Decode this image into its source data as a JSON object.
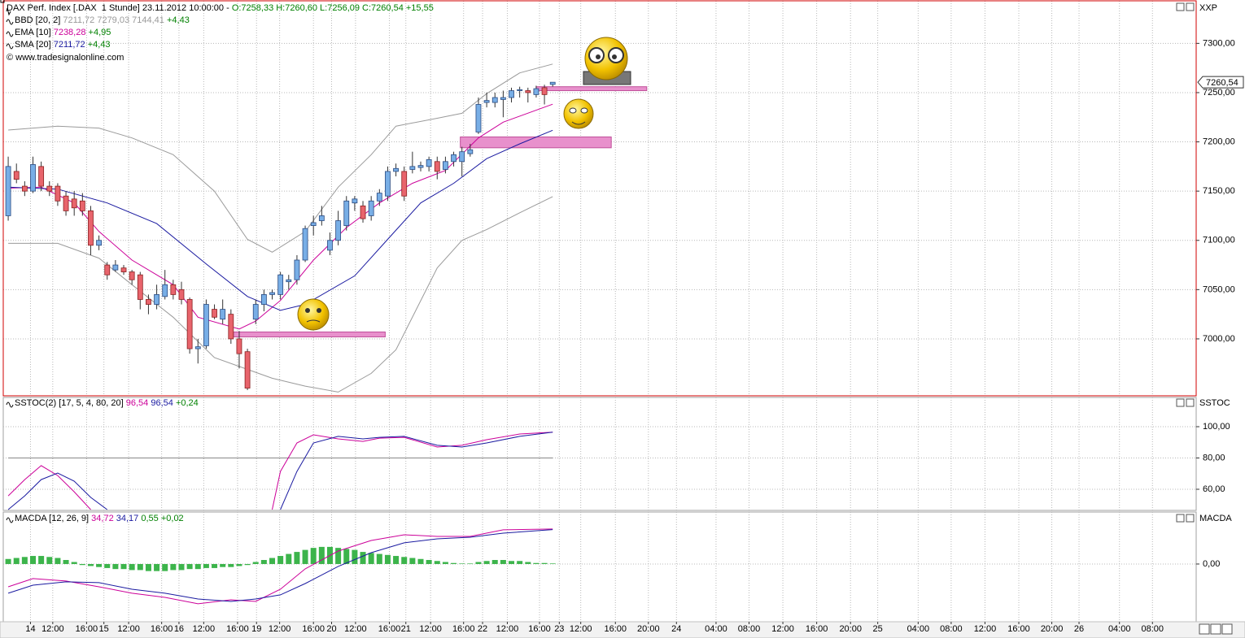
{
  "chart_data": [
    {
      "type": "candlestick",
      "title": "DAX Perf. Index [.DAX  1 Stunde] 23.11.2012 10:00:00 -",
      "quote": "O:7258,33 H:7260,60 L:7256,09 C:7260,54 +15,55",
      "copyright": "© www.tradesignalonline.com",
      "axis_name": "XXP",
      "up_color": "#78aee6",
      "down_color": "#e8646c",
      "xlim": [
        -0.6,
        144
      ],
      "ylim": [
        6942.2,
        7343.2
      ],
      "yticks": [
        {
          "value": 7000,
          "label": "7000,00"
        },
        {
          "value": 7050,
          "label": "7050,00"
        },
        {
          "value": 7100,
          "label": "7100,00"
        },
        {
          "value": 7150,
          "label": "7150,00"
        },
        {
          "value": 7200,
          "label": "7200,00"
        },
        {
          "value": 7250,
          "label": "7250,00"
        },
        {
          "value": 7300,
          "label": "7300,00"
        }
      ],
      "last_price": {
        "value": 7260.54,
        "label": "7260,54"
      },
      "x": [
        0,
        1,
        2,
        3,
        4,
        5,
        6,
        7,
        8,
        9,
        10,
        11,
        12,
        13,
        14,
        15,
        16,
        17,
        18,
        19,
        20,
        21,
        22,
        23,
        24,
        25,
        26,
        27,
        28,
        29,
        30,
        31,
        32,
        33,
        34,
        35,
        36,
        37,
        38,
        39,
        40,
        41,
        42,
        43,
        44,
        45,
        46,
        47,
        48,
        49,
        50,
        51,
        52,
        53,
        54,
        55,
        56,
        57,
        58,
        59,
        60,
        61,
        62,
        63,
        64,
        65,
        66
      ],
      "open": [
        7125,
        7170,
        7155,
        7150,
        7175,
        7155,
        7155,
        7145,
        7142,
        7140,
        7130,
        7095,
        7075,
        7070,
        7072,
        7068,
        7065,
        7040,
        7035,
        7043,
        7055,
        7050,
        7040,
        6990,
        6993,
        7030,
        7020,
        7025,
        7000,
        6987,
        7020,
        7035,
        7045,
        7045,
        7058,
        7060,
        7080,
        7115,
        7120,
        7090,
        7100,
        7115,
        7138,
        7135,
        7125,
        7140,
        7145,
        7170,
        7170,
        7172,
        7174,
        7175,
        7180,
        7172,
        7180,
        7180,
        7188,
        7210,
        7240,
        7240,
        7243,
        7245,
        7252,
        7252,
        7248,
        7255,
        7258.33
      ],
      "high": [
        7185,
        7178,
        7160,
        7185,
        7180,
        7160,
        7158,
        7150,
        7150,
        7148,
        7135,
        7105,
        7078,
        7080,
        7075,
        7070,
        7068,
        7045,
        7055,
        7070,
        7060,
        7058,
        7042,
        7000,
        7040,
        7035,
        7040,
        7030,
        7008,
        6990,
        7040,
        7050,
        7050,
        7068,
        7065,
        7085,
        7115,
        7125,
        7135,
        7108,
        7130,
        7145,
        7145,
        7140,
        7145,
        7152,
        7175,
        7178,
        7175,
        7190,
        7180,
        7185,
        7185,
        7185,
        7190,
        7195,
        7198,
        7245,
        7250,
        7250,
        7252,
        7255,
        7256,
        7255,
        7257,
        7258,
        7260.6
      ],
      "low": [
        7120,
        7158,
        7145,
        7148,
        7150,
        7145,
        7135,
        7125,
        7125,
        7125,
        7085,
        7090,
        7060,
        7068,
        7065,
        7055,
        7030,
        7025,
        7030,
        7040,
        7040,
        7035,
        6985,
        6975,
        6990,
        7020,
        7015,
        6995,
        6970,
        6948,
        7015,
        7028,
        7040,
        7040,
        7050,
        7055,
        7078,
        7105,
        7115,
        7085,
        7095,
        7110,
        7130,
        7118,
        7120,
        7135,
        7140,
        7165,
        7140,
        7168,
        7170,
        7170,
        7162,
        7168,
        7175,
        7165,
        7185,
        7208,
        7235,
        7235,
        7225,
        7240,
        7245,
        7240,
        7245,
        7238,
        7256.09
      ],
      "close": [
        7175,
        7162,
        7150,
        7177,
        7155,
        7150,
        7140,
        7130,
        7133,
        7130,
        7095,
        7100,
        7065,
        7075,
        7068,
        7060,
        7040,
        7035,
        7045,
        7055,
        7045,
        7040,
        6990,
        6992,
        7035,
        7022,
        7030,
        7000,
        6985,
        6950,
        7035,
        7045,
        7047,
        7065,
        7060,
        7080,
        7112,
        7118,
        7125,
        7100,
        7120,
        7140,
        7142,
        7122,
        7140,
        7148,
        7170,
        7173,
        7145,
        7175,
        7176,
        7182,
        7170,
        7180,
        7187,
        7190,
        7192,
        7238,
        7242,
        7245,
        7245,
        7252,
        7253,
        7250,
        7254,
        7248,
        7260.54
      ],
      "zones": [
        {
          "x": [
            27.3,
            45.7
          ],
          "y": [
            7002,
            7007
          ]
        },
        {
          "x": [
            54.8,
            73.1
          ],
          "y": [
            7194,
            7205
          ]
        },
        {
          "x": [
            64,
            77.4
          ],
          "y": [
            7252,
            7256
          ]
        }
      ],
      "series": [
        {
          "name": "BBD [20, 2]",
          "readout": "7211,72 7279,03 7144,41",
          "change": "+4,43",
          "color": "#9a9a9a",
          "x": [
            0,
            6,
            11,
            15,
            20,
            25,
            29,
            32,
            36,
            40,
            44,
            47,
            52,
            55,
            58,
            62,
            66
          ],
          "upper": [
            7212,
            7216,
            7214,
            7204,
            7187,
            7150,
            7101,
            7088,
            7109,
            7154,
            7187,
            7216,
            7224,
            7229,
            7249,
            7270,
            7279.03
          ],
          "lower": [
            7097,
            7097,
            7082,
            7055,
            7022,
            6981,
            6969,
            6960,
            6952,
            6946,
            6965,
            6989,
            7072,
            7100,
            7111,
            7128,
            7144.41
          ]
        },
        {
          "name": "EMA [10]",
          "readout": "7238,28",
          "change": "+4,95",
          "color": "#cc0099",
          "x": [
            0,
            4,
            8,
            11,
            15,
            20,
            23,
            28,
            30,
            33,
            37,
            41,
            45,
            49,
            53,
            57,
            60,
            66
          ],
          "values": [
            7153,
            7154,
            7138,
            7109,
            7080,
            7055,
            7022,
            7010,
            7018,
            7039,
            7080,
            7113,
            7138,
            7158,
            7171,
            7204,
            7220,
            7238.28
          ]
        },
        {
          "name": "SMA [20]",
          "readout": "7211,72",
          "change": "+4,43",
          "color": "#1a1aa0",
          "x": [
            0,
            6,
            12,
            18,
            24,
            29,
            33,
            36,
            42,
            46,
            50,
            54,
            58,
            62,
            66
          ],
          "values": [
            7154,
            7152,
            7138,
            7117,
            7076,
            7043,
            7029,
            7035,
            7064,
            7101,
            7138,
            7158,
            7183,
            7198,
            7211.72
          ]
        }
      ]
    },
    {
      "type": "line",
      "title": "SSTOC(2) [17, 5, 4, 80, 20]",
      "readouts": [
        {
          "text": "96,54",
          "color": "#cc0099"
        },
        {
          "text": "96,54",
          "color": "#1a1aa0"
        }
      ],
      "change": "+0,24",
      "axis_name": "SSTOC",
      "xlim": [
        -0.6,
        144
      ],
      "ylim": [
        46.5,
        118.7
      ],
      "yticks": [
        {
          "value": 60,
          "label": "60,00"
        },
        {
          "value": 80,
          "label": "80,00"
        },
        {
          "value": 100,
          "label": "100,00"
        }
      ],
      "level": 80,
      "series": [
        {
          "color": "#cc0099",
          "x": [
            0,
            2,
            4,
            6,
            8,
            10,
            12,
            32,
            33,
            35,
            37,
            40,
            43,
            45,
            48,
            52,
            55,
            58,
            62,
            66
          ],
          "values": [
            55.8,
            66.2,
            75.1,
            68.8,
            58.4,
            47,
            null,
            47,
            71.4,
            89.6,
            94.8,
            92.2,
            90.6,
            92.7,
            93.2,
            87.0,
            88.1,
            91.7,
            95.3,
            96.54
          ]
        },
        {
          "color": "#1a1aa0",
          "x": [
            0,
            2,
            4,
            6,
            8,
            10,
            12,
            32,
            33,
            35,
            37,
            40,
            43,
            45,
            48,
            52,
            55,
            58,
            62,
            66
          ],
          "values": [
            47,
            55.8,
            66.2,
            70.4,
            65.2,
            54.8,
            47,
            null,
            47,
            71.4,
            89.6,
            93.8,
            92.2,
            93.2,
            93.8,
            88.1,
            87.0,
            89.6,
            93.8,
            96.54
          ]
        }
      ]
    },
    {
      "type": "line",
      "title": "MACDA [12, 26, 9]",
      "readouts": [
        {
          "text": "34,72",
          "color": "#cc0099"
        },
        {
          "text": "34,17",
          "color": "#1a1aa0"
        },
        {
          "text": "0,55",
          "color": "#008000"
        }
      ],
      "change": "+0,02",
      "axis_name": "MACDA",
      "xlim": [
        -0.6,
        144
      ],
      "ylim": [
        -57.3,
        51.6
      ],
      "yticks": [
        {
          "value": 0,
          "label": "0,00"
        }
      ],
      "series": [
        {
          "color": "#cc0099",
          "x": [
            0,
            3,
            7,
            11,
            15,
            19,
            23,
            27,
            30,
            33,
            36,
            40,
            44,
            48,
            52,
            56,
            60,
            66
          ],
          "values": [
            -22.6,
            -14.5,
            -16.9,
            -22.6,
            -29,
            -33.1,
            -39.5,
            -35.5,
            -37.1,
            -25,
            -4.8,
            12.9,
            23.4,
            29,
            27.4,
            27.4,
            33.9,
            34.72
          ]
        },
        {
          "color": "#1a1aa0",
          "x": [
            0,
            3,
            7,
            11,
            15,
            19,
            23,
            27,
            30,
            33,
            36,
            40,
            44,
            48,
            52,
            56,
            60,
            66
          ],
          "values": [
            -29,
            -21,
            -17.7,
            -18.5,
            -25,
            -29,
            -34.7,
            -37.1,
            -34.7,
            -30.6,
            -19.4,
            -2.4,
            11.3,
            21,
            25,
            26.6,
            30.6,
            34.17
          ]
        }
      ],
      "histogram": {
        "color": "#3cb44b",
        "x": [
          0,
          1,
          2,
          3,
          4,
          5,
          6,
          7,
          8,
          9,
          10,
          11,
          12,
          13,
          14,
          15,
          16,
          17,
          18,
          19,
          20,
          21,
          22,
          23,
          24,
          25,
          26,
          27,
          28,
          29,
          30,
          31,
          32,
          33,
          34,
          35,
          36,
          37,
          38,
          39,
          40,
          41,
          42,
          43,
          44,
          45,
          46,
          47,
          48,
          49,
          50,
          51,
          52,
          53,
          54,
          55,
          56,
          57,
          58,
          59,
          60,
          61,
          62,
          63,
          64,
          65,
          66
        ],
        "values": [
          5,
          6,
          7,
          8,
          8,
          7,
          6,
          4,
          2,
          -1,
          -2,
          -3,
          -4,
          -5,
          -5,
          -6,
          -6,
          -7,
          -7,
          -7,
          -6,
          -6,
          -5,
          -5,
          -4,
          -4,
          -3,
          -3,
          -2,
          -1,
          2,
          4,
          6,
          8,
          10,
          12,
          14,
          16,
          17,
          17,
          16,
          15,
          14,
          12,
          11,
          10,
          9,
          8,
          7,
          6,
          5,
          4,
          3,
          2,
          1,
          0.5,
          0.5,
          2,
          3,
          4,
          4,
          3,
          3,
          2,
          1,
          1,
          0.55
        ]
      },
      "xticks": [
        {
          "value": 2.7,
          "label": "14"
        },
        {
          "value": 5.4,
          "label": "12:00"
        },
        {
          "value": 9.5,
          "label": "16:00"
        },
        {
          "value": 11.6,
          "label": "15"
        },
        {
          "value": 14.6,
          "label": "12:00"
        },
        {
          "value": 18.6,
          "label": "16:00"
        },
        {
          "value": 20.7,
          "label": "16"
        },
        {
          "value": 23.7,
          "label": "12:00"
        },
        {
          "value": 27.8,
          "label": "16:00"
        },
        {
          "value": 30.1,
          "label": "19"
        },
        {
          "value": 32.9,
          "label": "12:00"
        },
        {
          "value": 37,
          "label": "16:00"
        },
        {
          "value": 39.2,
          "label": "20"
        },
        {
          "value": 42.1,
          "label": "12:00"
        },
        {
          "value": 46.2,
          "label": "16:00"
        },
        {
          "value": 48.2,
          "label": "21"
        },
        {
          "value": 51.2,
          "label": "12:00"
        },
        {
          "value": 55.2,
          "label": "16:00"
        },
        {
          "value": 57.5,
          "label": "22"
        },
        {
          "value": 60.5,
          "label": "12:00"
        },
        {
          "value": 64.4,
          "label": "16:00"
        },
        {
          "value": 66.8,
          "label": "23"
        },
        {
          "value": 69.4,
          "label": "12:00"
        },
        {
          "value": 73.6,
          "label": "16:00"
        },
        {
          "value": 77.6,
          "label": "20:00"
        },
        {
          "value": 81,
          "label": "24"
        },
        {
          "value": 85.8,
          "label": "04:00"
        },
        {
          "value": 89.8,
          "label": "08:00"
        },
        {
          "value": 93.9,
          "label": "12:00"
        },
        {
          "value": 98,
          "label": "16:00"
        },
        {
          "value": 102.1,
          "label": "20:00"
        },
        {
          "value": 105.4,
          "label": "25"
        },
        {
          "value": 110.3,
          "label": "04:00"
        },
        {
          "value": 114.3,
          "label": "08:00"
        },
        {
          "value": 118.4,
          "label": "12:00"
        },
        {
          "value": 122.5,
          "label": "16:00"
        },
        {
          "value": 126.5,
          "label": "20:00"
        },
        {
          "value": 129.8,
          "label": "26"
        },
        {
          "value": 134.7,
          "label": "04:00"
        },
        {
          "value": 138.7,
          "label": "08:00"
        }
      ]
    }
  ]
}
